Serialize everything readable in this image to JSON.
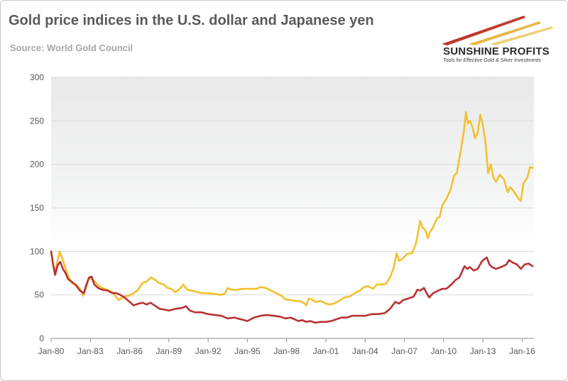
{
  "header": {
    "title": "Gold price indices in the U.S. dollar and Japanese yen",
    "subtitle": "Source: World Gold Council"
  },
  "logo": {
    "name": "SUNSHINE PROFITS",
    "tagline": "Tools for Effective Gold & Silver Investments"
  },
  "colors": {
    "usd": "#f2c12e",
    "jpy": "#b83233",
    "grid": "#d9d9d9",
    "axis_text": "#595959",
    "logo_red": "#c0392b",
    "logo_gold": "#e6b84a"
  },
  "chart_data": {
    "type": "line",
    "title": "Gold price indices in the U.S. dollar and Japanese yen",
    "xlabel": "",
    "ylabel": "",
    "ylim": [
      0,
      300
    ],
    "yticks": [
      0,
      50,
      100,
      150,
      200,
      250,
      300
    ],
    "xlim": [
      1980,
      2016.9
    ],
    "xticks": [
      {
        "label": "Jan-80",
        "value": 1980
      },
      {
        "label": "Jan-83",
        "value": 1983
      },
      {
        "label": "Jan-86",
        "value": 1986
      },
      {
        "label": "Jan-89",
        "value": 1989
      },
      {
        "label": "Jan-92",
        "value": 1992
      },
      {
        "label": "Jan-95",
        "value": 1995
      },
      {
        "label": "Jan-98",
        "value": 1998
      },
      {
        "label": "Jan-01",
        "value": 2001
      },
      {
        "label": "Jan-04",
        "value": 2004
      },
      {
        "label": "Jan-07",
        "value": 2007
      },
      {
        "label": "Jan-10",
        "value": 2010
      },
      {
        "label": "Jan-13",
        "value": 2013
      },
      {
        "label": "Jan-16",
        "value": 2016
      }
    ],
    "grid": true,
    "legend": "none",
    "series": [
      {
        "name": "USD",
        "points": [
          [
            1980.0,
            100
          ],
          [
            1980.15,
            85
          ],
          [
            1980.3,
            76
          ],
          [
            1980.5,
            90
          ],
          [
            1980.65,
            100
          ],
          [
            1980.85,
            92
          ],
          [
            1981.0,
            85
          ],
          [
            1981.3,
            72
          ],
          [
            1981.6,
            63
          ],
          [
            1981.9,
            62
          ],
          [
            1982.2,
            57
          ],
          [
            1982.45,
            49
          ],
          [
            1982.7,
            60
          ],
          [
            1982.9,
            70
          ],
          [
            1983.1,
            68
          ],
          [
            1983.3,
            66
          ],
          [
            1983.6,
            61
          ],
          [
            1983.9,
            58
          ],
          [
            1984.3,
            56
          ],
          [
            1984.7,
            53
          ],
          [
            1985.0,
            47
          ],
          [
            1985.2,
            44
          ],
          [
            1985.5,
            48
          ],
          [
            1985.9,
            49
          ],
          [
            1986.2,
            51
          ],
          [
            1986.6,
            55
          ],
          [
            1987.0,
            64
          ],
          [
            1987.3,
            65
          ],
          [
            1987.6,
            70
          ],
          [
            1987.9,
            68
          ],
          [
            1988.2,
            64
          ],
          [
            1988.6,
            62
          ],
          [
            1988.9,
            58
          ],
          [
            1989.2,
            57
          ],
          [
            1989.5,
            53
          ],
          [
            1989.9,
            58
          ],
          [
            1990.1,
            62
          ],
          [
            1990.4,
            56
          ],
          [
            1990.7,
            55
          ],
          [
            1991.0,
            54
          ],
          [
            1991.5,
            52
          ],
          [
            1992.0,
            52
          ],
          [
            1992.5,
            51
          ],
          [
            1993.0,
            50
          ],
          [
            1993.3,
            52
          ],
          [
            1993.5,
            58
          ],
          [
            1993.8,
            56
          ],
          [
            1994.2,
            56
          ],
          [
            1994.7,
            57
          ],
          [
            1995.2,
            57
          ],
          [
            1995.7,
            57
          ],
          [
            1996.0,
            59
          ],
          [
            1996.4,
            58
          ],
          [
            1996.8,
            55
          ],
          [
            1997.2,
            52
          ],
          [
            1997.6,
            49
          ],
          [
            1997.9,
            45
          ],
          [
            1998.3,
            44
          ],
          [
            1998.7,
            43
          ],
          [
            1999.0,
            43
          ],
          [
            1999.3,
            41
          ],
          [
            1999.5,
            38
          ],
          [
            1999.7,
            46
          ],
          [
            1999.9,
            45
          ],
          [
            2000.2,
            42
          ],
          [
            2000.6,
            43
          ],
          [
            2001.0,
            40
          ],
          [
            2001.3,
            39
          ],
          [
            2001.6,
            40
          ],
          [
            2002.0,
            43
          ],
          [
            2002.4,
            47
          ],
          [
            2002.8,
            48
          ],
          [
            2003.2,
            52
          ],
          [
            2003.6,
            55
          ],
          [
            2003.9,
            59
          ],
          [
            2004.2,
            60
          ],
          [
            2004.6,
            57
          ],
          [
            2004.9,
            62
          ],
          [
            2005.3,
            62
          ],
          [
            2005.6,
            63
          ],
          [
            2005.9,
            70
          ],
          [
            2006.2,
            82
          ],
          [
            2006.4,
            98
          ],
          [
            2006.6,
            89
          ],
          [
            2006.9,
            92
          ],
          [
            2007.2,
            97
          ],
          [
            2007.6,
            98
          ],
          [
            2007.9,
            110
          ],
          [
            2008.2,
            135
          ],
          [
            2008.4,
            127
          ],
          [
            2008.6,
            125
          ],
          [
            2008.8,
            115
          ],
          [
            2008.95,
            122
          ],
          [
            2009.2,
            128
          ],
          [
            2009.5,
            138
          ],
          [
            2009.7,
            140
          ],
          [
            2009.9,
            153
          ],
          [
            2010.2,
            160
          ],
          [
            2010.5,
            170
          ],
          [
            2010.8,
            187
          ],
          [
            2011.0,
            190
          ],
          [
            2011.3,
            215
          ],
          [
            2011.55,
            238
          ],
          [
            2011.7,
            260
          ],
          [
            2011.85,
            247
          ],
          [
            2012.0,
            250
          ],
          [
            2012.2,
            243
          ],
          [
            2012.4,
            230
          ],
          [
            2012.6,
            236
          ],
          [
            2012.8,
            257
          ],
          [
            2013.0,
            245
          ],
          [
            2013.2,
            225
          ],
          [
            2013.4,
            190
          ],
          [
            2013.6,
            200
          ],
          [
            2013.8,
            185
          ],
          [
            2014.0,
            180
          ],
          [
            2014.3,
            188
          ],
          [
            2014.6,
            183
          ],
          [
            2014.9,
            168
          ],
          [
            2015.1,
            174
          ],
          [
            2015.4,
            168
          ],
          [
            2015.7,
            161
          ],
          [
            2015.9,
            158
          ],
          [
            2016.1,
            178
          ],
          [
            2016.4,
            185
          ],
          [
            2016.6,
            197
          ],
          [
            2016.8,
            196
          ]
        ]
      },
      {
        "name": "JPY",
        "points": [
          [
            1980.0,
            100
          ],
          [
            1980.15,
            85
          ],
          [
            1980.3,
            73
          ],
          [
            1980.5,
            84
          ],
          [
            1980.7,
            88
          ],
          [
            1980.9,
            80
          ],
          [
            1981.1,
            75
          ],
          [
            1981.3,
            68
          ],
          [
            1981.6,
            65
          ],
          [
            1981.9,
            61
          ],
          [
            1982.2,
            55
          ],
          [
            1982.5,
            52
          ],
          [
            1982.7,
            62
          ],
          [
            1982.9,
            70
          ],
          [
            1983.1,
            71
          ],
          [
            1983.3,
            62
          ],
          [
            1983.6,
            58
          ],
          [
            1983.9,
            56
          ],
          [
            1984.3,
            55
          ],
          [
            1984.7,
            52
          ],
          [
            1985.0,
            52
          ],
          [
            1985.3,
            50
          ],
          [
            1985.7,
            46
          ],
          [
            1986.0,
            42
          ],
          [
            1986.3,
            38
          ],
          [
            1986.7,
            40
          ],
          [
            1987.0,
            41
          ],
          [
            1987.3,
            39
          ],
          [
            1987.6,
            41
          ],
          [
            1987.9,
            38
          ],
          [
            1988.3,
            34
          ],
          [
            1988.7,
            33
          ],
          [
            1989.0,
            32
          ],
          [
            1989.5,
            34
          ],
          [
            1990.0,
            35
          ],
          [
            1990.3,
            37
          ],
          [
            1990.6,
            32
          ],
          [
            1991.0,
            30
          ],
          [
            1991.5,
            30
          ],
          [
            1992.0,
            28
          ],
          [
            1992.5,
            27
          ],
          [
            1993.0,
            26
          ],
          [
            1993.5,
            23
          ],
          [
            1994.0,
            24
          ],
          [
            1994.5,
            22
          ],
          [
            1995.0,
            20
          ],
          [
            1995.5,
            24
          ],
          [
            1996.0,
            26
          ],
          [
            1996.5,
            27
          ],
          [
            1997.0,
            26
          ],
          [
            1997.5,
            25
          ],
          [
            1997.9,
            23
          ],
          [
            1998.3,
            24
          ],
          [
            1998.6,
            22
          ],
          [
            1998.9,
            20
          ],
          [
            1999.2,
            21
          ],
          [
            1999.5,
            19
          ],
          [
            1999.8,
            20
          ],
          [
            2000.2,
            18
          ],
          [
            2000.6,
            19
          ],
          [
            2001.0,
            19
          ],
          [
            2001.4,
            20
          ],
          [
            2001.8,
            22
          ],
          [
            2002.2,
            24
          ],
          [
            2002.6,
            24
          ],
          [
            2003.0,
            26
          ],
          [
            2003.5,
            26
          ],
          [
            2004.0,
            26
          ],
          [
            2004.5,
            28
          ],
          [
            2005.0,
            28
          ],
          [
            2005.5,
            29
          ],
          [
            2005.9,
            34
          ],
          [
            2006.3,
            42
          ],
          [
            2006.6,
            40
          ],
          [
            2006.9,
            44
          ],
          [
            2007.3,
            46
          ],
          [
            2007.7,
            48
          ],
          [
            2008.0,
            56
          ],
          [
            2008.2,
            55
          ],
          [
            2008.5,
            58
          ],
          [
            2008.7,
            52
          ],
          [
            2008.9,
            47
          ],
          [
            2009.2,
            52
          ],
          [
            2009.6,
            55
          ],
          [
            2009.9,
            57
          ],
          [
            2010.2,
            57
          ],
          [
            2010.6,
            62
          ],
          [
            2010.9,
            67
          ],
          [
            2011.2,
            70
          ],
          [
            2011.6,
            83
          ],
          [
            2011.8,
            80
          ],
          [
            2012.0,
            82
          ],
          [
            2012.3,
            78
          ],
          [
            2012.6,
            80
          ],
          [
            2012.9,
            88
          ],
          [
            2013.1,
            91
          ],
          [
            2013.3,
            93
          ],
          [
            2013.5,
            85
          ],
          [
            2013.7,
            82
          ],
          [
            2014.0,
            80
          ],
          [
            2014.4,
            82
          ],
          [
            2014.8,
            85
          ],
          [
            2015.0,
            90
          ],
          [
            2015.3,
            87
          ],
          [
            2015.6,
            85
          ],
          [
            2015.9,
            80
          ],
          [
            2016.2,
            85
          ],
          [
            2016.5,
            86
          ],
          [
            2016.8,
            83
          ]
        ]
      }
    ]
  }
}
